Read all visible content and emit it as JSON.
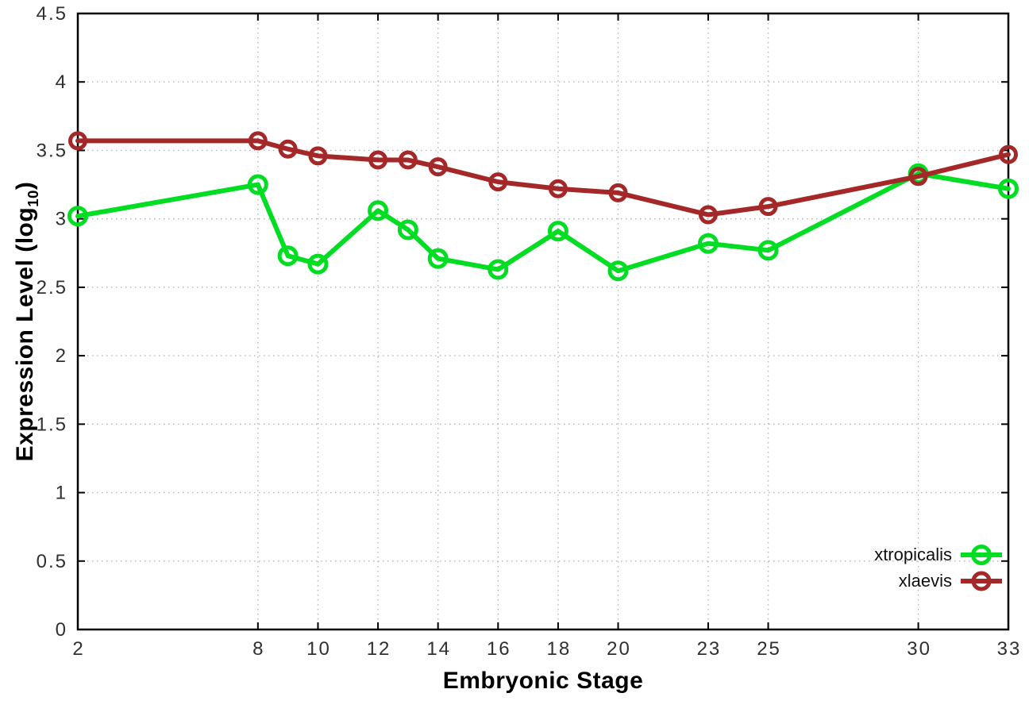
{
  "chart_data": {
    "type": "line",
    "title": "",
    "xlabel": "Embryonic Stage",
    "ylabel_prefix": "Expression Level (log",
    "ylabel_subscript": "10",
    "ylabel_suffix": ")",
    "x": [
      2,
      8,
      9,
      10,
      12,
      13,
      14,
      16,
      18,
      20,
      23,
      25,
      30,
      33
    ],
    "series": [
      {
        "name": "xtropicalis",
        "color": "#00dd22",
        "values": [
          3.02,
          3.25,
          2.73,
          2.67,
          3.06,
          2.92,
          2.71,
          2.63,
          2.91,
          2.62,
          2.82,
          2.77,
          3.33,
          3.22
        ]
      },
      {
        "name": "xlaevis",
        "color": "#a52828",
        "values": [
          3.57,
          3.57,
          3.51,
          3.46,
          3.43,
          3.43,
          3.38,
          3.27,
          3.22,
          3.19,
          3.03,
          3.09,
          3.31,
          3.47
        ]
      }
    ],
    "xticks": [
      2,
      8,
      10,
      12,
      14,
      16,
      18,
      20,
      23,
      25,
      30,
      33
    ],
    "yticks": [
      0,
      0.5,
      1,
      1.5,
      2,
      2.5,
      3,
      3.5,
      4,
      4.5
    ],
    "xlim": [
      2,
      33
    ],
    "ylim": [
      0,
      4.5
    ],
    "grid": true,
    "legend_position": "bottom-right",
    "marker": "open-circle",
    "colors": {
      "grid": "#b4b4bc",
      "axis": "#000000",
      "tick_text": "#303030"
    }
  }
}
